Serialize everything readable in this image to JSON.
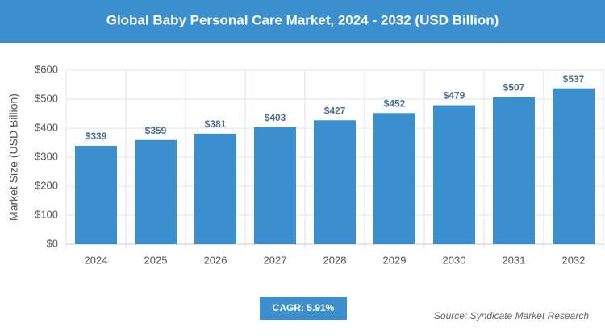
{
  "chart_data": {
    "type": "bar",
    "title": "Global Baby Personal Care Market, 2024 - 2032 (USD Billion)",
    "y_label": "Market Size (USD Billion)",
    "categories": [
      "2024",
      "2025",
      "2026",
      "2027",
      "2028",
      "2029",
      "2030",
      "2031",
      "2032"
    ],
    "values": [
      339,
      359,
      381,
      403,
      427,
      452,
      479,
      507,
      537
    ],
    "value_labels": [
      "$339",
      "$359",
      "$381",
      "$403",
      "$427",
      "$452",
      "$479",
      "$507",
      "$537"
    ],
    "color": "#3b8fcf",
    "ylim": [
      0,
      600
    ],
    "yticks": [
      {
        "value": 0,
        "label": "$0"
      },
      {
        "value": 100,
        "label": "$100"
      },
      {
        "value": 200,
        "label": "$200"
      },
      {
        "value": 300,
        "label": "$300"
      },
      {
        "value": 400,
        "label": "$400"
      },
      {
        "value": 500,
        "label": "$500"
      },
      {
        "value": 600,
        "label": "$600"
      }
    ],
    "grid": true,
    "cagr": "CAGR: 5.91%",
    "source": "Source: Syndicate Market Research"
  }
}
